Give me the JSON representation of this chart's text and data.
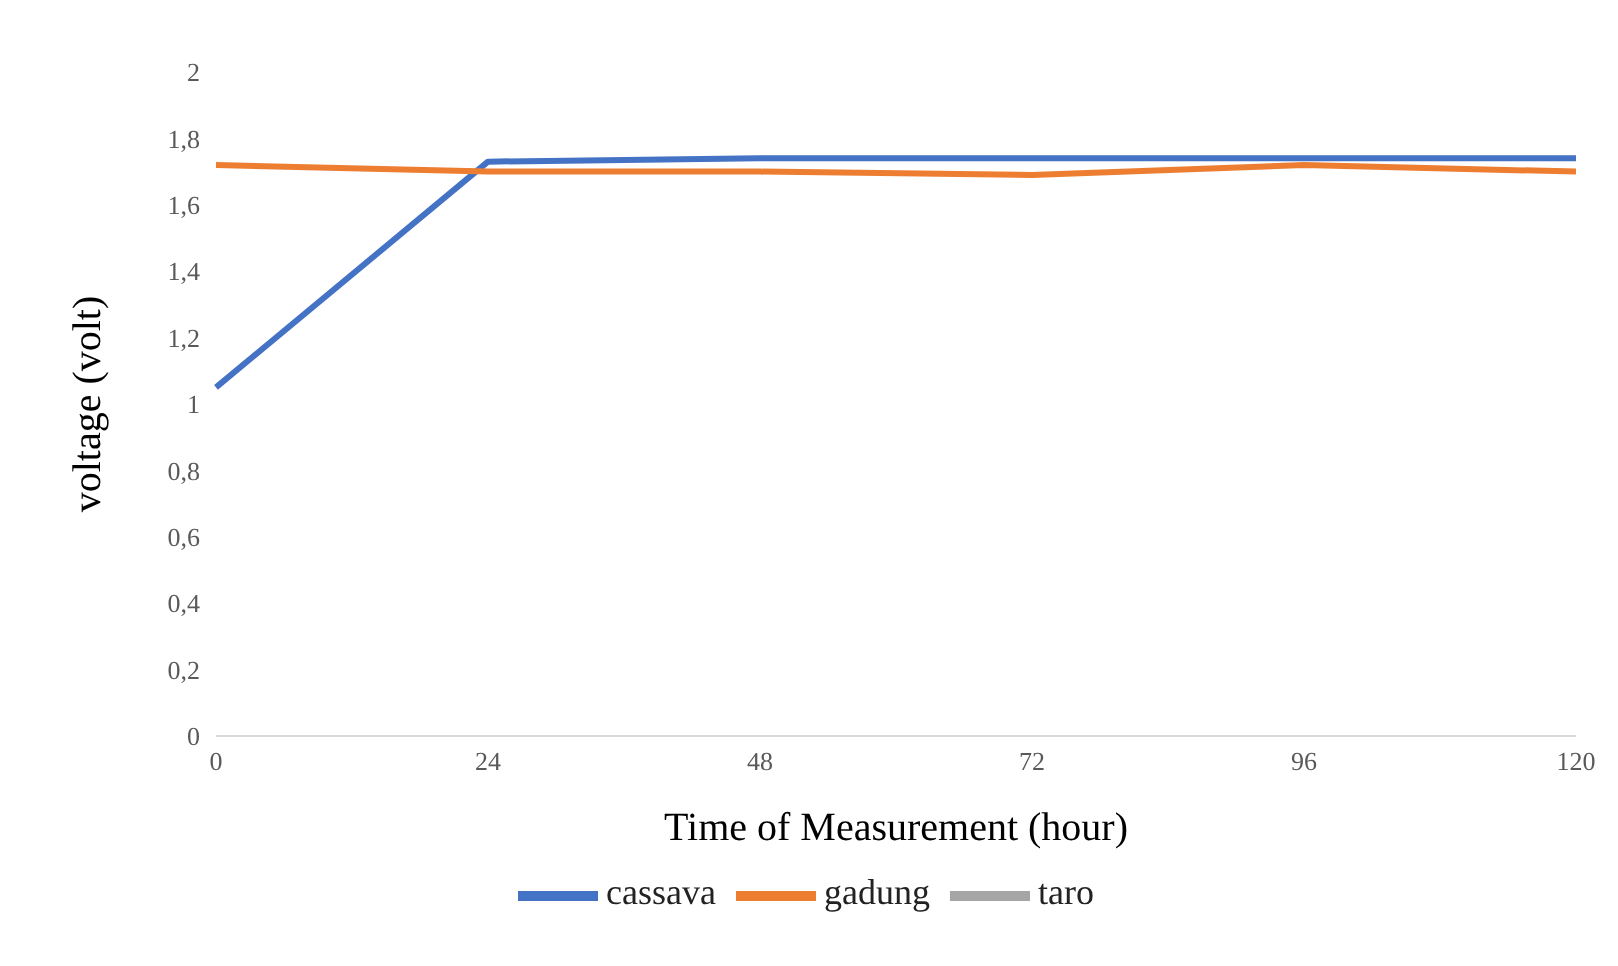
{
  "chart_data": {
    "type": "line",
    "xlabel": "Time of Measurement (hour)",
    "ylabel": "voltage (volt)",
    "categories": [
      "0",
      "24",
      "48",
      "72",
      "96",
      "120"
    ],
    "series": [
      {
        "name": "cassava",
        "color": "#4472c4",
        "values": [
          1.05,
          1.73,
          1.74,
          1.74,
          1.74,
          1.74
        ]
      },
      {
        "name": "gadung",
        "color": "#ed7d31",
        "values": [
          1.72,
          1.7,
          1.7,
          1.69,
          1.72,
          1.7
        ]
      },
      {
        "name": "taro",
        "color": "#a5a5a5",
        "values": [
          null,
          null,
          null,
          null,
          null,
          null
        ]
      }
    ],
    "ylim": [
      0,
      2
    ],
    "yticks": [
      0,
      {
        "value": 0.2,
        "label": "0,2"
      },
      {
        "value": 0.4,
        "label": "0,4"
      },
      {
        "value": 0.6,
        "label": "0,6"
      },
      {
        "value": 0.8,
        "label": "0,8"
      },
      1,
      {
        "value": 1.2,
        "label": "1,2"
      },
      {
        "value": 1.4,
        "label": "1,4"
      },
      {
        "value": 1.6,
        "label": "1,6"
      },
      {
        "value": 1.8,
        "label": "1,8"
      },
      2
    ],
    "grid": false,
    "legend": "bottom",
    "marker": "none",
    "line_style": "solid"
  }
}
